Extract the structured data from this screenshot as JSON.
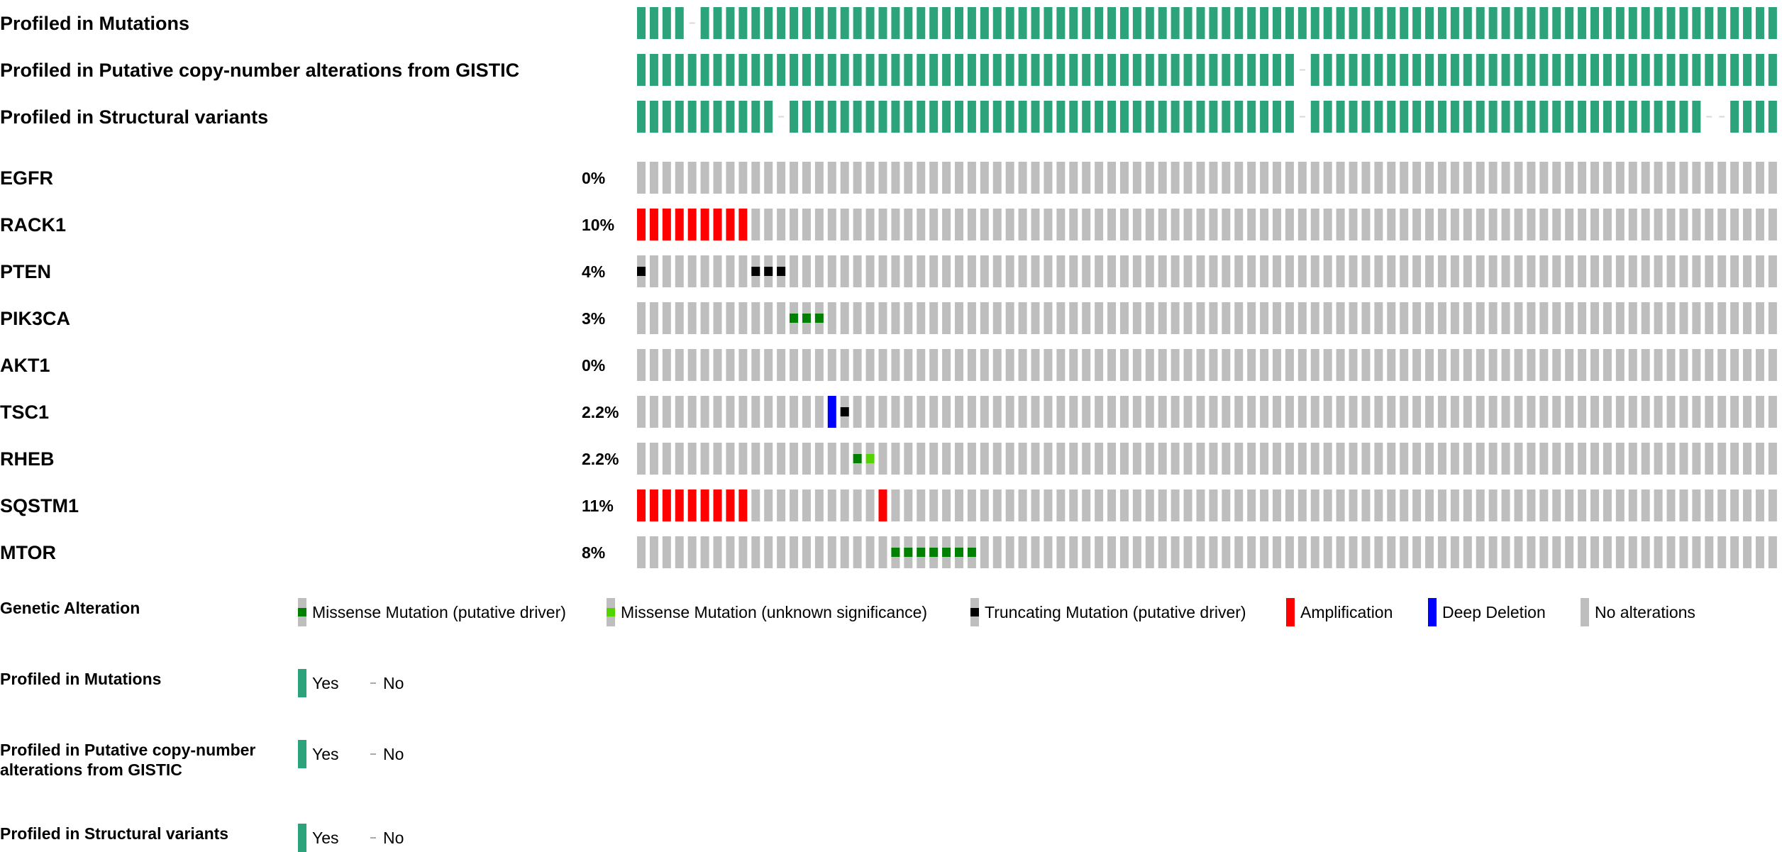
{
  "chart_data": {
    "type": "oncoprint",
    "num_samples": 90,
    "colors": {
      "profiled": "#2ca37b",
      "not_profiled_dash": "#d8d8d8",
      "no_alteration": "#bebebe",
      "missense_driver": "#008000",
      "missense_unknown": "#53d400",
      "truncating_driver": "#000000",
      "amplification": "#ff0000",
      "deep_deletion": "#0000ff"
    },
    "clinical_tracks": [
      {
        "label": "Profiled in Mutations",
        "not_profiled_samples": [
          4
        ]
      },
      {
        "label": "Profiled in Putative copy-number alterations from GISTIC",
        "not_profiled_samples": [
          52
        ]
      },
      {
        "label": "Profiled in Structural variants",
        "not_profiled_samples": [
          11,
          52,
          84,
          85
        ]
      }
    ],
    "genes": [
      {
        "gene": "EGFR",
        "percent": "0%",
        "alterations": []
      },
      {
        "gene": "RACK1",
        "percent": "10%",
        "alterations": [
          {
            "samples": [
              0,
              1,
              2,
              3,
              4,
              5,
              6,
              7,
              8
            ],
            "type": "amplification"
          }
        ]
      },
      {
        "gene": "PTEN",
        "percent": "4%",
        "alterations": [
          {
            "samples": [
              0,
              9,
              10,
              11
            ],
            "type": "truncating_driver"
          }
        ]
      },
      {
        "gene": "PIK3CA",
        "percent": "3%",
        "alterations": [
          {
            "samples": [
              12,
              13,
              14
            ],
            "type": "missense_driver"
          }
        ]
      },
      {
        "gene": "AKT1",
        "percent": "0%",
        "alterations": []
      },
      {
        "gene": "TSC1",
        "percent": "2.2%",
        "alterations": [
          {
            "samples": [
              15
            ],
            "type": "deep_deletion"
          },
          {
            "samples": [
              16
            ],
            "type": "truncating_driver"
          }
        ]
      },
      {
        "gene": "RHEB",
        "percent": "2.2%",
        "alterations": [
          {
            "samples": [
              17
            ],
            "type": "missense_driver"
          },
          {
            "samples": [
              18
            ],
            "type": "missense_unknown"
          }
        ]
      },
      {
        "gene": "SQSTM1",
        "percent": "11%",
        "alterations": [
          {
            "samples": [
              0,
              1,
              2,
              3,
              4,
              5,
              6,
              7,
              8,
              19
            ],
            "type": "amplification"
          }
        ]
      },
      {
        "gene": "MTOR",
        "percent": "8%",
        "alterations": [
          {
            "samples": [
              20,
              21,
              22,
              23,
              24,
              25,
              26
            ],
            "type": "missense_driver"
          }
        ]
      }
    ]
  },
  "legend": {
    "genetic_alteration": {
      "title": "Genetic Alteration",
      "items": [
        {
          "type": "missense_driver",
          "label": "Missense Mutation (putative driver)"
        },
        {
          "type": "missense_unknown",
          "label": "Missense Mutation (unknown significance)"
        },
        {
          "type": "truncating_driver",
          "label": "Truncating Mutation (putative driver)"
        },
        {
          "type": "amplification",
          "label": "Amplification"
        },
        {
          "type": "deep_deletion",
          "label": "Deep Deletion"
        },
        {
          "type": "no_alteration",
          "label": "No alterations"
        }
      ]
    },
    "profiled_tracks": [
      {
        "title": "Profiled in Mutations",
        "yes": "Yes",
        "no": "No"
      },
      {
        "title": "Profiled in Putative copy-number alterations from GISTIC",
        "yes": "Yes",
        "no": "No"
      },
      {
        "title": "Profiled in Structural variants",
        "yes": "Yes",
        "no": "No"
      }
    ]
  }
}
